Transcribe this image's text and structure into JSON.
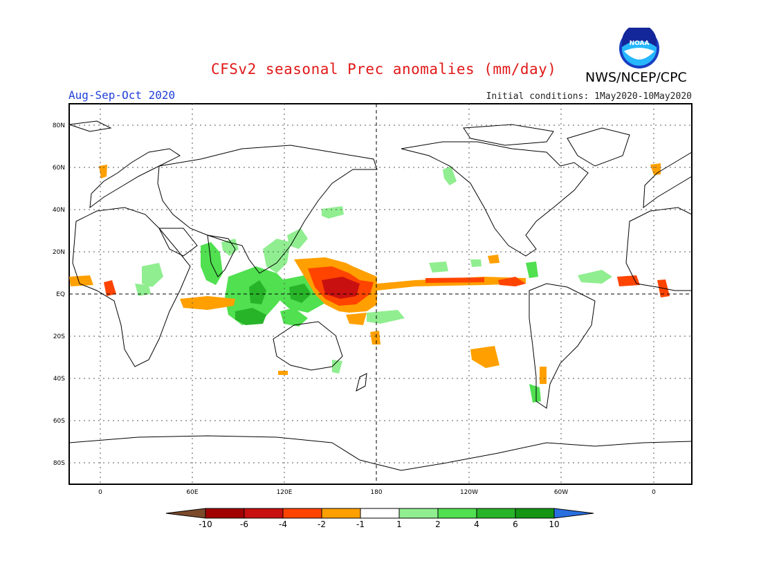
{
  "header": {
    "title": "CFSv2 seasonal Prec anomalies (mm/day)",
    "agency": "NWS/NCEP/CPC",
    "season": "Aug-Sep-Oct 2020",
    "initial_conditions": "Initial conditions: 1May2020-10May2020",
    "logo_text": "NOAA"
  },
  "map": {
    "lat_labels": [
      "80N",
      "60N",
      "40N",
      "20N",
      "EQ",
      "20S",
      "40S",
      "60S",
      "80S"
    ],
    "lon_labels": [
      "0",
      "60E",
      "120E",
      "180",
      "120W",
      "60W",
      "0"
    ],
    "dateline_label": "180",
    "equator_label": "EQ"
  },
  "colorbar": {
    "labels": [
      "-10",
      "-6",
      "-4",
      "-2",
      "-1",
      "1",
      "2",
      "4",
      "6",
      "10"
    ],
    "colors": [
      "#7a4a2a",
      "#a00000",
      "#c81010",
      "#ff4400",
      "#ffa000",
      "#ffffff",
      "#90ee90",
      "#50e050",
      "#28b428",
      "#149614",
      "#2a6fe0"
    ]
  },
  "colors": {
    "title": "#e01818",
    "season": "#1f3fd8",
    "wet_light": "#90ee90",
    "wet_mid": "#50e050",
    "wet_dark": "#28b428",
    "dry_light": "#ffa000",
    "dry_mid": "#ff4400",
    "dry_dark": "#c81010"
  }
}
